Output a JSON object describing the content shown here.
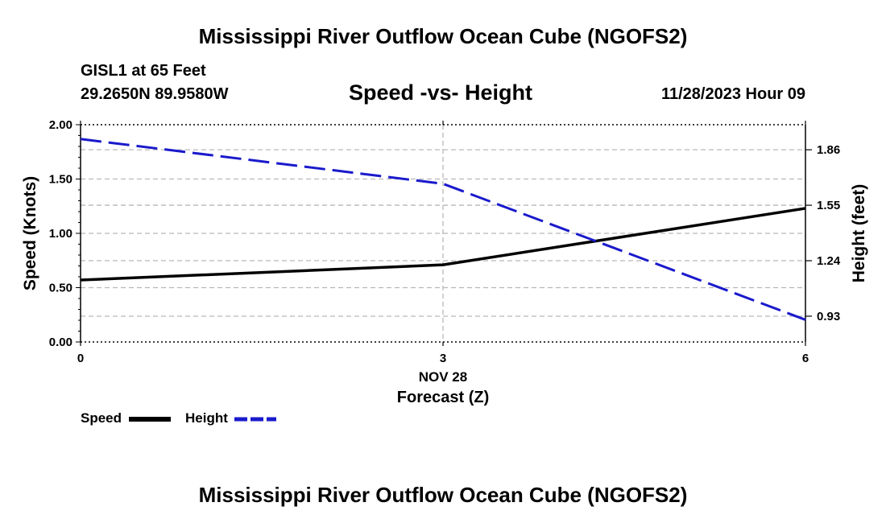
{
  "title": "Mississippi River Outflow Ocean Cube (NGOFS2)",
  "bottom_title": "Mississippi River Outflow Ocean Cube (NGOFS2)",
  "station": "GISL1 at 65 Feet",
  "coords": "29.2650N  89.9580W",
  "subtitle": "Speed -vs- Height",
  "datetime": "11/28/2023 Hour 09",
  "legend": {
    "speed": "Speed",
    "height": "Height"
  },
  "colors": {
    "speed": "#000000",
    "height": "#1a1acc",
    "grid": "#b8b8b8"
  },
  "chart_data": {
    "type": "line",
    "title": "Speed -vs- Height",
    "xlabel": "Forecast (Z)",
    "xlabel_date": "NOV 28",
    "ylabel": "Speed (Knots)",
    "y2label": "Height (feet)",
    "xlim": [
      0,
      6
    ],
    "ylim": [
      0,
      2.0
    ],
    "y2lim": [
      0.786,
      2.0
    ],
    "x_ticks": [
      0,
      3,
      6
    ],
    "x_tick_labels": [
      "0",
      "3",
      "6"
    ],
    "y_ticks": [
      0,
      0.5,
      1.0,
      1.5,
      2.0
    ],
    "y_tick_labels": [
      "0.00",
      "0.50",
      "1.00",
      "1.50",
      "2.00"
    ],
    "y2_ticks": [
      0.93,
      1.24,
      1.55,
      1.86
    ],
    "y2_tick_labels": [
      "0.93",
      "1.24",
      "1.55",
      "1.86"
    ],
    "grid": true,
    "series": [
      {
        "name": "Speed",
        "axis": "left",
        "style": "solid",
        "x": [
          0,
          3,
          6
        ],
        "values": [
          0.57,
          0.71,
          1.23
        ]
      },
      {
        "name": "Height",
        "axis": "right",
        "style": "dashed",
        "x": [
          0,
          3,
          6
        ],
        "values": [
          1.92,
          1.67,
          0.91
        ]
      }
    ]
  }
}
